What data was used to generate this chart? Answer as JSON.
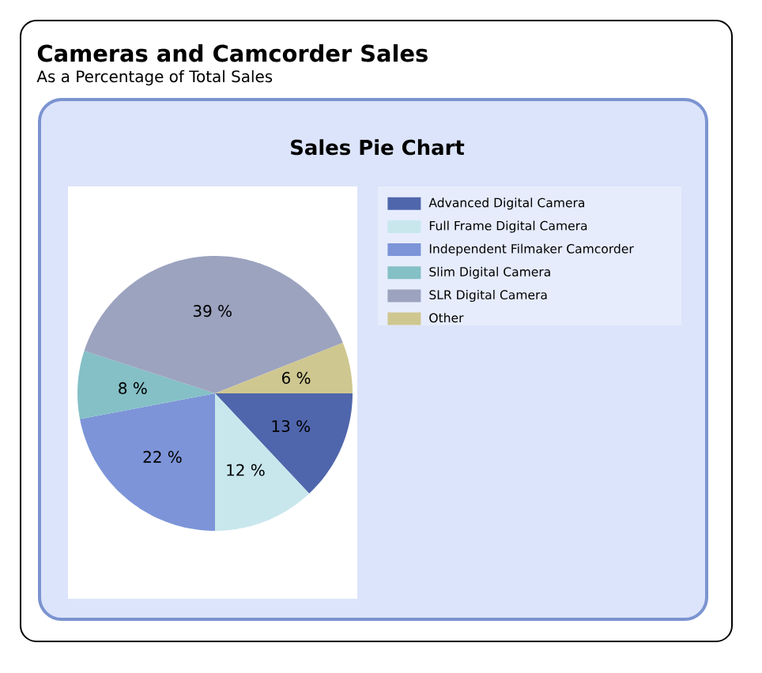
{
  "chart_data": {
    "type": "pie",
    "title": "Cameras and Camcorder Sales",
    "subtitle": "As a Percentage of Total Sales",
    "annotations": [
      "Sales Pie Chart"
    ],
    "categories": [
      "Advanced Digital Camera",
      "Full Frame Digital Camera",
      "Independent Filmaker Camcorder",
      "Slim Digital Camera",
      "SLR Digital Camera",
      "Other"
    ],
    "values": [
      13,
      12,
      22,
      8,
      39,
      6
    ],
    "value_labels": [
      "13 %",
      "12 %",
      "22 %",
      "8 %",
      "39 %",
      "6 %"
    ],
    "colors": [
      "#5066ac",
      "#c8e7ed",
      "#7d94d8",
      "#84c0c6",
      "#9ca3bf",
      "#cfc790"
    ],
    "legend": "top right"
  }
}
